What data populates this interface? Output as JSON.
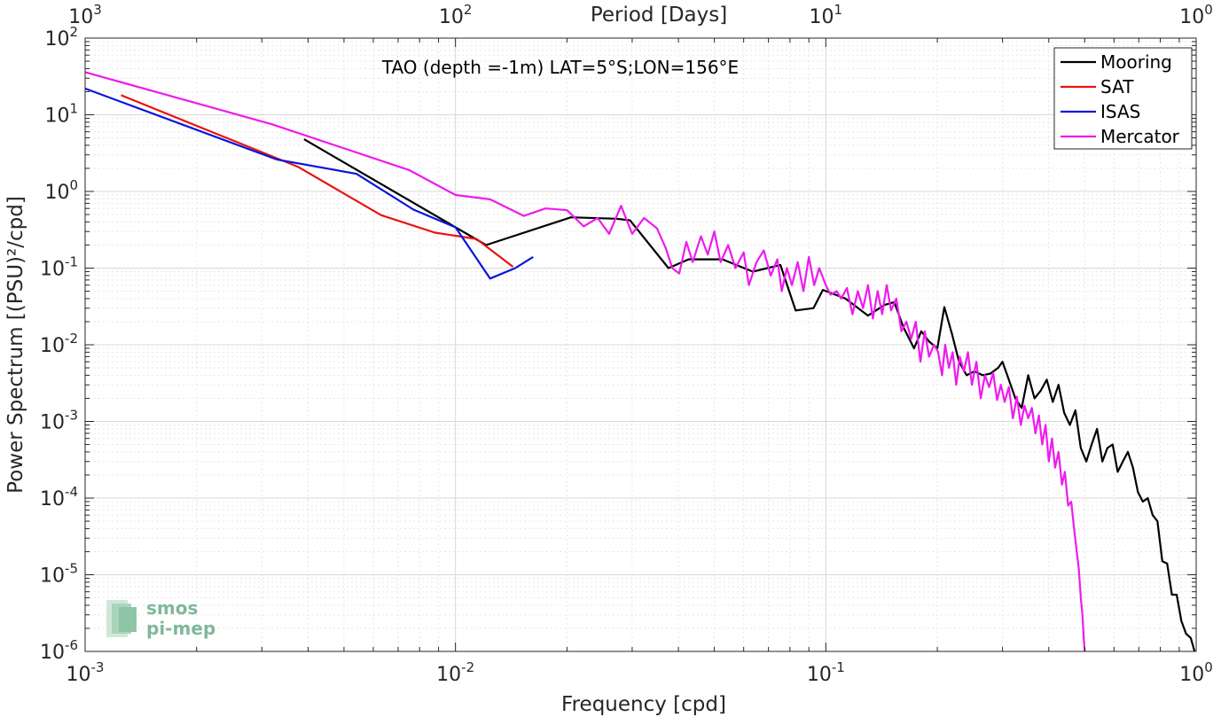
{
  "chart_data": {
    "type": "line",
    "title": "TAO (depth =-1m) LAT=5°S;LON=156°E",
    "xlabel": "Frequency [cpd]",
    "ylabel": "Power Spectrum [(PSU)²/cpd]",
    "top_axis_label": "Period [Days]",
    "xscale": "log",
    "yscale": "log",
    "xlim": [
      0.001,
      1
    ],
    "ylim": [
      1e-06,
      100
    ],
    "grid": true,
    "legend_position": "top-right",
    "x_ticks": [
      {
        "value": 0.001,
        "base": "10",
        "exp": "-3"
      },
      {
        "value": 0.01,
        "base": "10",
        "exp": "-2"
      },
      {
        "value": 0.1,
        "base": "10",
        "exp": "-1"
      },
      {
        "value": 1,
        "base": "10",
        "exp": "0"
      }
    ],
    "top_ticks": [
      {
        "value": 0.001,
        "base": "10",
        "exp": "3"
      },
      {
        "value": 0.01,
        "base": "10",
        "exp": "2"
      },
      {
        "value": 0.1,
        "base": "10",
        "exp": "1"
      },
      {
        "value": 1,
        "base": "10",
        "exp": "0"
      }
    ],
    "y_ticks": [
      {
        "value": 100,
        "base": "10",
        "exp": "2"
      },
      {
        "value": 10,
        "base": "10",
        "exp": "1"
      },
      {
        "value": 1,
        "base": "10",
        "exp": "0"
      },
      {
        "value": 0.1,
        "base": "10",
        "exp": "-1"
      },
      {
        "value": 0.01,
        "base": "10",
        "exp": "-2"
      },
      {
        "value": 0.001,
        "base": "10",
        "exp": "-3"
      },
      {
        "value": 0.0001,
        "base": "10",
        "exp": "-4"
      },
      {
        "value": 1e-05,
        "base": "10",
        "exp": "-5"
      },
      {
        "value": 1e-06,
        "base": "10",
        "exp": "-6"
      }
    ],
    "series": [
      {
        "name": "Mooring",
        "color": "#000000",
        "points": [
          [
            0.0039,
            4.8
          ],
          [
            0.0121,
            0.2
          ],
          [
            0.0205,
            0.46
          ],
          [
            0.0272,
            0.44
          ],
          [
            0.0296,
            0.42
          ],
          [
            0.0376,
            0.1
          ],
          [
            0.0426,
            0.13
          ],
          [
            0.0526,
            0.13
          ],
          [
            0.0635,
            0.09
          ],
          [
            0.0754,
            0.11
          ],
          [
            0.0829,
            0.028
          ],
          [
            0.0926,
            0.03
          ],
          [
            0.0982,
            0.052
          ],
          [
            0.113,
            0.04
          ],
          [
            0.13,
            0.024
          ],
          [
            0.144,
            0.033
          ],
          [
            0.153,
            0.036
          ],
          [
            0.162,
            0.017
          ],
          [
            0.173,
            0.009
          ],
          [
            0.181,
            0.015
          ],
          [
            0.19,
            0.011
          ],
          [
            0.2,
            0.009
          ],
          [
            0.209,
            0.031
          ],
          [
            0.219,
            0.014
          ],
          [
            0.229,
            0.006
          ],
          [
            0.24,
            0.004
          ],
          [
            0.252,
            0.0045
          ],
          [
            0.265,
            0.004
          ],
          [
            0.278,
            0.0042
          ],
          [
            0.292,
            0.005
          ],
          [
            0.3,
            0.006
          ],
          [
            0.312,
            0.0035
          ],
          [
            0.325,
            0.002
          ],
          [
            0.338,
            0.0015
          ],
          [
            0.352,
            0.004
          ],
          [
            0.366,
            0.002
          ],
          [
            0.38,
            0.0025
          ],
          [
            0.395,
            0.0035
          ],
          [
            0.41,
            0.0018
          ],
          [
            0.425,
            0.003
          ],
          [
            0.44,
            0.0013
          ],
          [
            0.456,
            0.0009
          ],
          [
            0.472,
            0.0014
          ],
          [
            0.488,
            0.00045
          ],
          [
            0.505,
            0.0003
          ],
          [
            0.522,
            0.0005
          ],
          [
            0.54,
            0.0008
          ],
          [
            0.558,
            0.0003
          ],
          [
            0.576,
            0.00045
          ],
          [
            0.595,
            0.0005
          ],
          [
            0.614,
            0.00022
          ],
          [
            0.634,
            0.0003
          ],
          [
            0.654,
            0.0004
          ],
          [
            0.675,
            0.00025
          ],
          [
            0.696,
            0.00012
          ],
          [
            0.718,
            9e-05
          ],
          [
            0.74,
            0.0001
          ],
          [
            0.763,
            6e-05
          ],
          [
            0.786,
            5e-05
          ],
          [
            0.81,
            1.5e-05
          ],
          [
            0.835,
            1.4e-05
          ],
          [
            0.86,
            5.5e-06
          ],
          [
            0.886,
            5.5e-06
          ],
          [
            0.912,
            2.5e-06
          ],
          [
            0.939,
            1.7e-06
          ],
          [
            0.967,
            1.5e-06
          ],
          [
            0.99,
            1e-06
          ]
        ]
      },
      {
        "name": "SAT",
        "color": "#e8140f",
        "points": [
          [
            0.00125,
            18
          ],
          [
            0.00375,
            2.1
          ],
          [
            0.0063,
            0.49
          ],
          [
            0.0088,
            0.29
          ],
          [
            0.0114,
            0.24
          ],
          [
            0.0143,
            0.104
          ]
        ]
      },
      {
        "name": "ISAS",
        "color": "#0a14dd",
        "points": [
          [
            0.001,
            22
          ],
          [
            0.0033,
            2.6
          ],
          [
            0.0054,
            1.7
          ],
          [
            0.0077,
            0.58
          ],
          [
            0.01,
            0.34
          ],
          [
            0.0124,
            0.073
          ],
          [
            0.0145,
            0.1
          ],
          [
            0.0162,
            0.14
          ]
        ]
      },
      {
        "name": "Mercator",
        "color": "#ee1bee",
        "points": [
          [
            0.001,
            36
          ],
          [
            0.0032,
            7.5
          ],
          [
            0.0075,
            1.9
          ],
          [
            0.01,
            0.9
          ],
          [
            0.0124,
            0.79
          ],
          [
            0.0153,
            0.48
          ],
          [
            0.0175,
            0.6
          ],
          [
            0.02,
            0.57
          ],
          [
            0.0222,
            0.35
          ],
          [
            0.0242,
            0.45
          ],
          [
            0.026,
            0.28
          ],
          [
            0.028,
            0.65
          ],
          [
            0.03,
            0.28
          ],
          [
            0.0323,
            0.45
          ],
          [
            0.035,
            0.33
          ],
          [
            0.037,
            0.18
          ],
          [
            0.0385,
            0.1
          ],
          [
            0.0402,
            0.085
          ],
          [
            0.042,
            0.22
          ],
          [
            0.0437,
            0.12
          ],
          [
            0.046,
            0.26
          ],
          [
            0.048,
            0.15
          ],
          [
            0.05,
            0.3
          ],
          [
            0.052,
            0.12
          ],
          [
            0.0545,
            0.2
          ],
          [
            0.057,
            0.1
          ],
          [
            0.06,
            0.16
          ],
          [
            0.062,
            0.06
          ],
          [
            0.065,
            0.12
          ],
          [
            0.068,
            0.17
          ],
          [
            0.071,
            0.08
          ],
          [
            0.074,
            0.13
          ],
          [
            0.076,
            0.05
          ],
          [
            0.0785,
            0.1
          ],
          [
            0.081,
            0.06
          ],
          [
            0.084,
            0.12
          ],
          [
            0.087,
            0.05
          ],
          [
            0.09,
            0.14
          ],
          [
            0.093,
            0.06
          ],
          [
            0.096,
            0.1
          ],
          [
            0.1,
            0.06
          ],
          [
            0.103,
            0.045
          ],
          [
            0.107,
            0.05
          ],
          [
            0.11,
            0.04
          ],
          [
            0.114,
            0.055
          ],
          [
            0.118,
            0.025
          ],
          [
            0.122,
            0.05
          ],
          [
            0.126,
            0.03
          ],
          [
            0.13,
            0.06
          ],
          [
            0.134,
            0.022
          ],
          [
            0.138,
            0.05
          ],
          [
            0.142,
            0.025
          ],
          [
            0.146,
            0.06
          ],
          [
            0.15,
            0.028
          ],
          [
            0.155,
            0.04
          ],
          [
            0.16,
            0.015
          ],
          [
            0.165,
            0.02
          ],
          [
            0.17,
            0.012
          ],
          [
            0.175,
            0.02
          ],
          [
            0.18,
            0.006
          ],
          [
            0.185,
            0.015
          ],
          [
            0.19,
            0.007
          ],
          [
            0.196,
            0.01
          ],
          [
            0.201,
            0.008
          ],
          [
            0.206,
            0.004
          ],
          [
            0.21,
            0.01
          ],
          [
            0.215,
            0.005
          ],
          [
            0.22,
            0.008
          ],
          [
            0.225,
            0.003
          ],
          [
            0.23,
            0.007
          ],
          [
            0.236,
            0.0045
          ],
          [
            0.242,
            0.008
          ],
          [
            0.248,
            0.003
          ],
          [
            0.255,
            0.006
          ],
          [
            0.262,
            0.002
          ],
          [
            0.269,
            0.004
          ],
          [
            0.276,
            0.0028
          ],
          [
            0.283,
            0.0043
          ],
          [
            0.29,
            0.0019
          ],
          [
            0.297,
            0.003
          ],
          [
            0.304,
            0.0018
          ],
          [
            0.312,
            0.0028
          ],
          [
            0.32,
            0.0011
          ],
          [
            0.328,
            0.0021
          ],
          [
            0.336,
            0.0009
          ],
          [
            0.344,
            0.0016
          ],
          [
            0.352,
            0.0011
          ],
          [
            0.36,
            0.0015
          ],
          [
            0.368,
            0.0007
          ],
          [
            0.376,
            0.0012
          ],
          [
            0.384,
            0.0005
          ],
          [
            0.392,
            0.0009
          ],
          [
            0.4,
            0.0003
          ],
          [
            0.408,
            0.0006
          ],
          [
            0.416,
            0.00025
          ],
          [
            0.425,
            0.0004
          ],
          [
            0.434,
            0.00015
          ],
          [
            0.442,
            0.00022
          ],
          [
            0.451,
            8e-05
          ],
          [
            0.46,
            9e-05
          ],
          [
            0.468,
            4e-05
          ],
          [
            0.476,
            2e-05
          ],
          [
            0.482,
            1.2e-05
          ],
          [
            0.488,
            5e-06
          ],
          [
            0.493,
            3e-06
          ],
          [
            0.497,
            1.5e-06
          ],
          [
            0.5,
            1e-06
          ]
        ]
      }
    ]
  }
}
